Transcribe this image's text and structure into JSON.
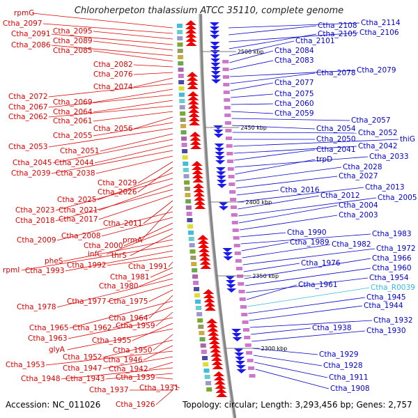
{
  "title": "Chloroherpeton thalassium ATCC 35110, complete genome",
  "footer": {
    "accession": "Accession: NC_011026",
    "summary": "Topology: circular; Length: 3,293,456 bp; Genes: 2,757"
  },
  "colors": {
    "left_labels": "#dd0000",
    "right_labels": "#0000cc",
    "rna_label": "#33bbdd",
    "backbone": "#888888",
    "forward_arrows": "#ee0000",
    "reverse_arrows": "#1a1aee"
  },
  "kbp_marks": [
    "2500 kbp",
    "2450 kbp",
    "2400 kbp",
    "2350 kbp",
    "2300 kbp"
  ],
  "left_labels": [
    "rpmG",
    "Ctha_2097",
    "Ctha_2095",
    "Ctha_2091",
    "Ctha_2089",
    "Ctha_2086",
    "Ctha_2085",
    "Ctha_2082",
    "Ctha_2076",
    "Ctha_2074",
    "Ctha_2072",
    "Ctha_2069",
    "Ctha_2067",
    "Ctha_2064",
    "Ctha_2062",
    "Ctha_2061",
    "Ctha_2056",
    "Ctha_2055",
    "Ctha_2053",
    "Ctha_2051",
    "Ctha_2045",
    "Ctha_2044",
    "Ctha_2039",
    "Ctha_2038",
    "Ctha_2029",
    "Ctha_2026",
    "Ctha_2025",
    "Ctha_2023",
    "Ctha_2021",
    "Ctha_2018",
    "Ctha_2017",
    "Ctha_2011",
    "prmA",
    "Ctha_2009",
    "Ctha_2008",
    "Ctha_2000",
    "infC",
    "thrS",
    "pheS",
    "rpmI",
    "Ctha_1993",
    "Ctha_1992",
    "Ctha_1991",
    "Ctha_1981",
    "Ctha_1980",
    "Ctha_1978",
    "Ctha_1977",
    "Ctha_1975",
    "Ctha_1964",
    "Ctha_1965",
    "Ctha_1962",
    "Ctha_1959",
    "Ctha_1963",
    "Ctha_1955",
    "glyA",
    "Ctha_1950",
    "Ctha_1952",
    "Ctha_1946",
    "Ctha_1953",
    "Ctha_1947",
    "Ctha_1942",
    "Ctha_1948",
    "Ctha_1943",
    "Ctha_1939",
    "Ctha_1931",
    "Ctha_1937",
    "Ctha_1926"
  ],
  "right_labels": [
    "Ctha_2114",
    "Ctha_2108",
    "Ctha_2106",
    "Ctha_2105",
    "Ctha_2101",
    "Ctha_2084",
    "Ctha_2083",
    "Ctha_2079",
    "Ctha_2078",
    "Ctha_2077",
    "Ctha_2075",
    "Ctha_2060",
    "Ctha_2059",
    "Ctha_2057",
    "Ctha_2054",
    "Ctha_2052",
    "Ctha_2050",
    "thiG",
    "Ctha_2042",
    "Ctha_2041",
    "Ctha_2033",
    "trpD",
    "Ctha_2028",
    "Ctha_2027",
    "Ctha_2016",
    "Ctha_2013",
    "Ctha_2012",
    "Ctha_2005",
    "Ctha_2004",
    "Ctha_2003",
    "Ctha_1990",
    "Ctha_1983",
    "Ctha_1989",
    "Ctha_1982",
    "Ctha_1972",
    "Ctha_1976",
    "Ctha_1966",
    "Ctha_1960",
    "Ctha_1954",
    "Ctha_1961",
    "Ctha_R0039",
    "Ctha_1945",
    "Ctha_1944",
    "Ctha_1932",
    "Ctha_1938",
    "Ctha_1930",
    "Ctha_1929",
    "Ctha_1928",
    "Ctha_1911",
    "Ctha_1908"
  ]
}
